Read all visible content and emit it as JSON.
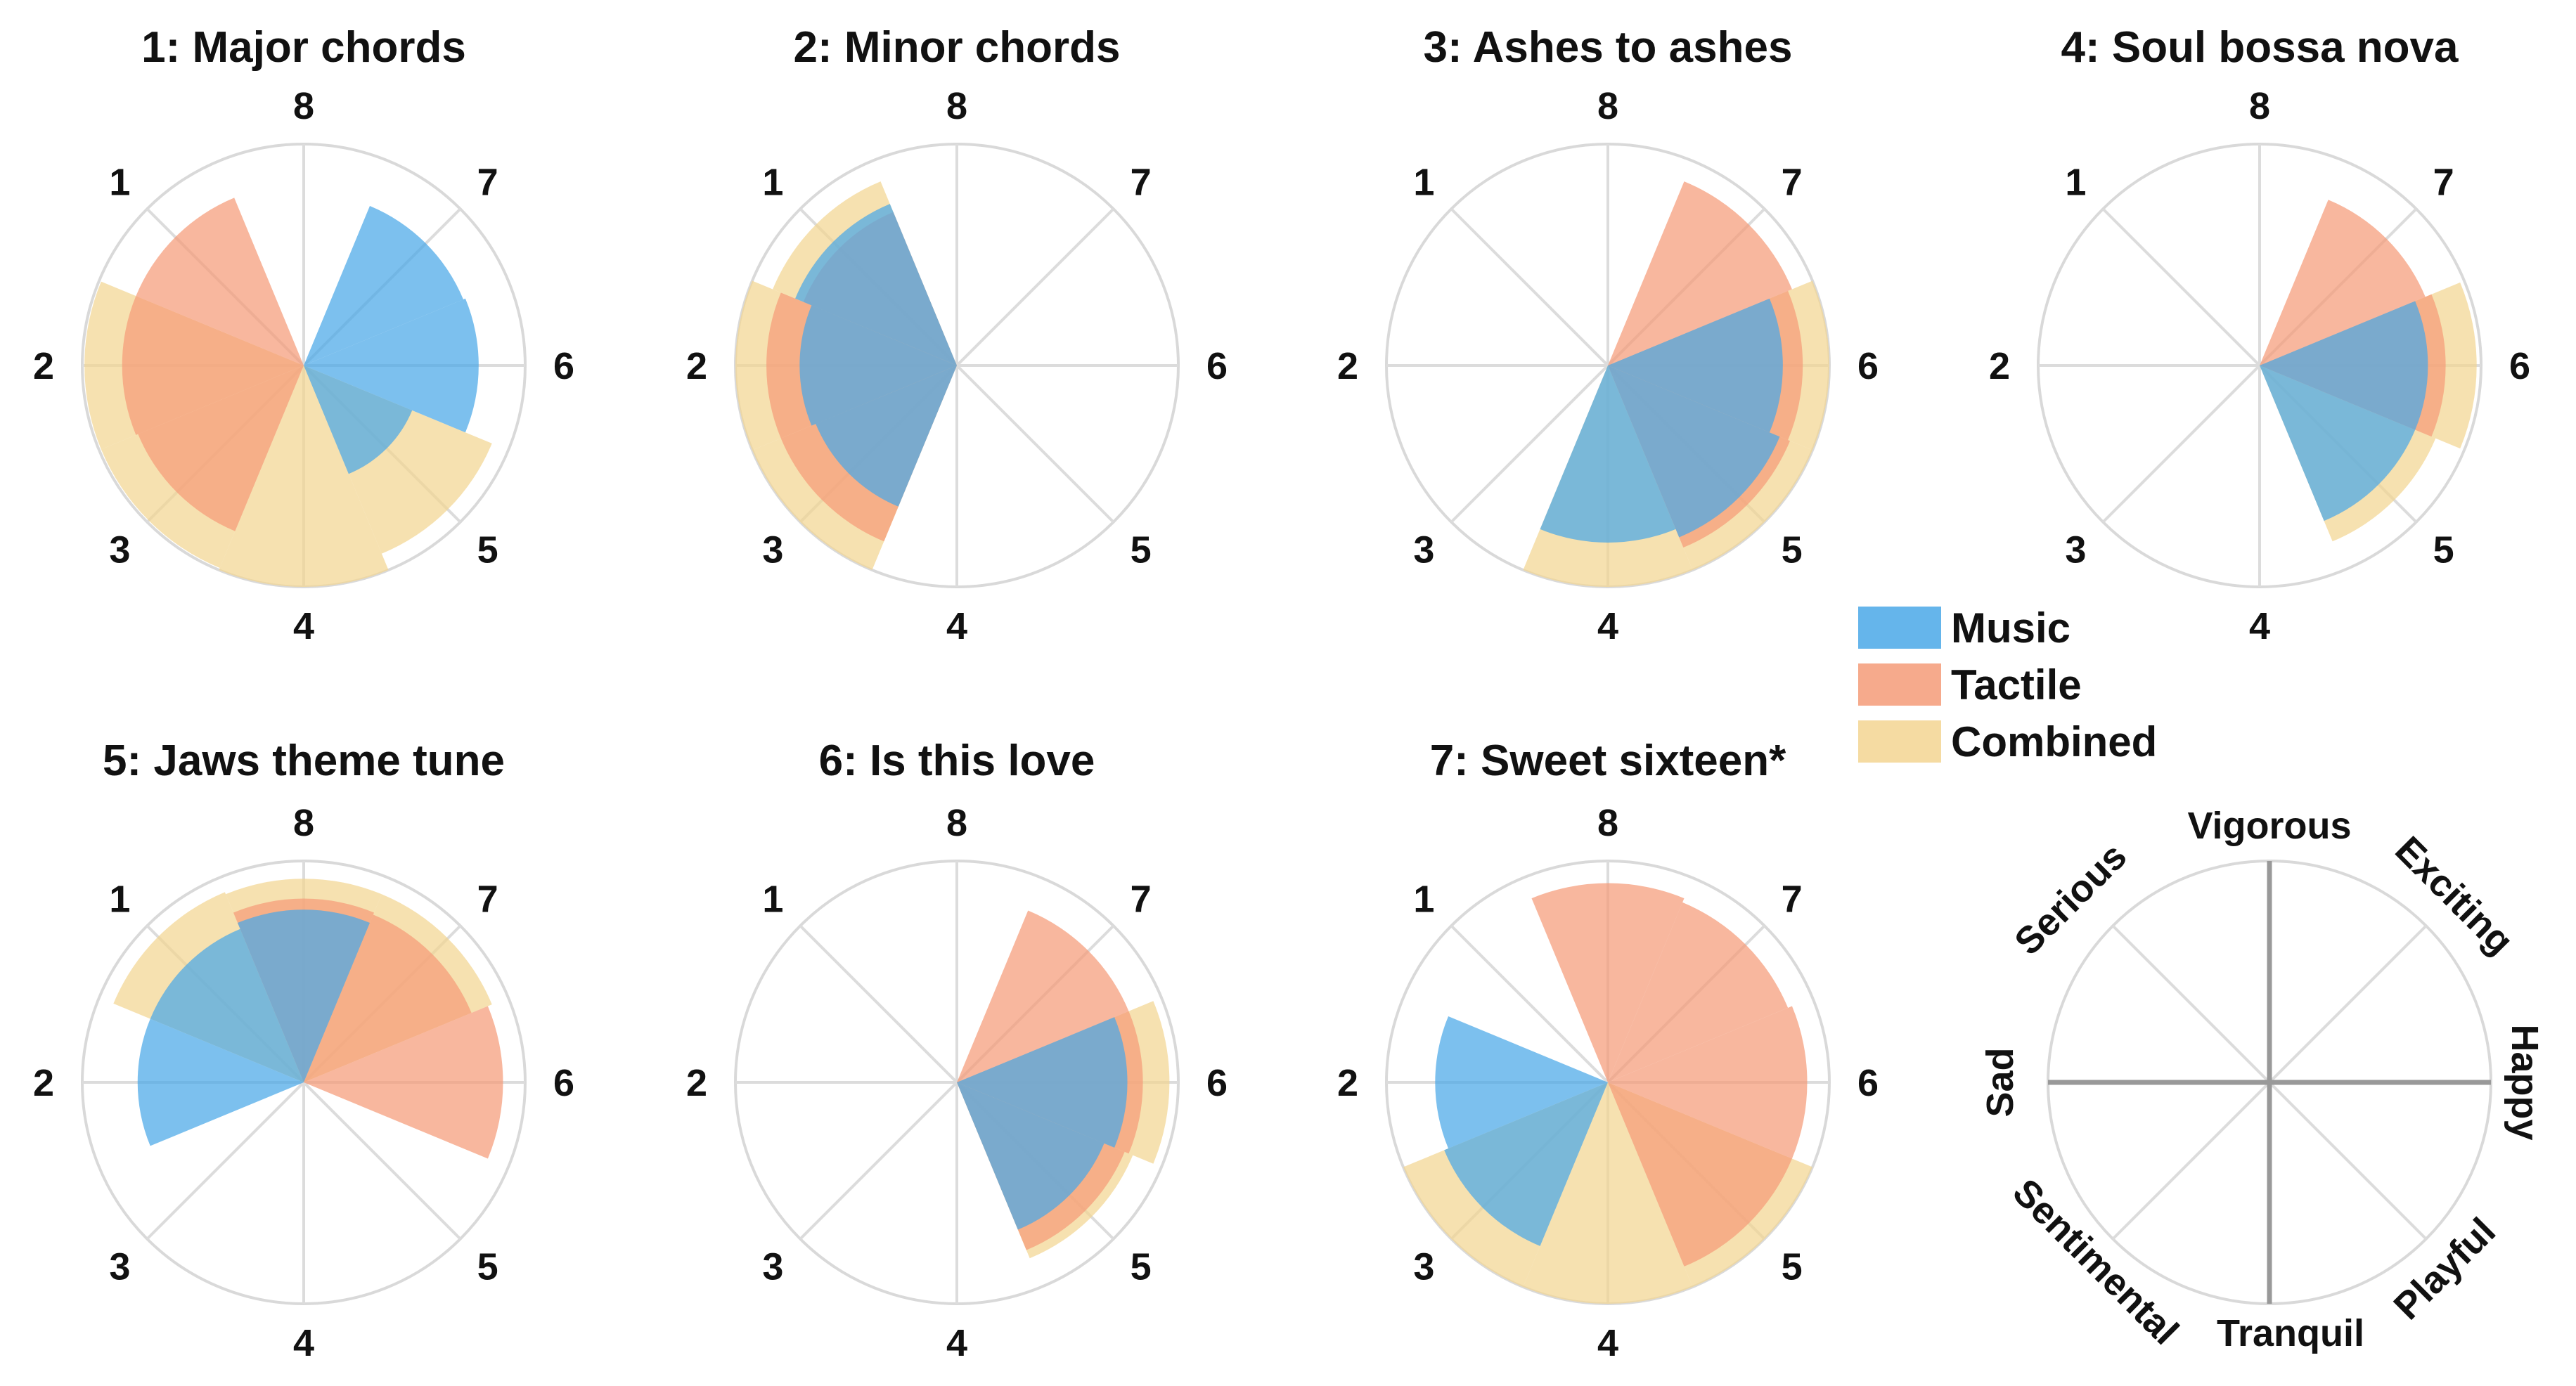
{
  "chart_data": {
    "type": "polar-rose",
    "direction_labels": [
      "1",
      "2",
      "3",
      "4",
      "5",
      "6",
      "7",
      "8"
    ],
    "radial_range": [
      0,
      1
    ],
    "grid": true,
    "legend": {
      "placement": "center-right",
      "entries": [
        {
          "key": "music",
          "name": "Music",
          "color": "#4aa8e8"
        },
        {
          "key": "tactile",
          "name": "Tactile",
          "color": "#f59b78"
        },
        {
          "key": "combined",
          "name": "Combined",
          "color": "#f3d592"
        }
      ]
    },
    "panels": [
      {
        "title": "1: Major chords",
        "series": {
          "music": [
            0,
            0,
            0,
            0,
            0.53,
            0.79,
            0.78,
            0
          ],
          "tactile": [
            0.82,
            0.82,
            0.81,
            0,
            0,
            0,
            0,
            0
          ],
          "combined": [
            0,
            0.99,
            0.99,
            1.0,
            0.92,
            0,
            0,
            0
          ]
        },
        "draw_order": [
          "combined",
          "tactile",
          "music"
        ]
      },
      {
        "title": "2: Minor chords",
        "series": {
          "music": [
            0.79,
            0.71,
            0.69,
            0,
            0,
            0,
            0,
            0
          ],
          "tactile": [
            0.75,
            0.86,
            0.86,
            0,
            0,
            0,
            0,
            0
          ],
          "combined": [
            0.9,
            1.0,
            1.0,
            0,
            0,
            0,
            0,
            0
          ]
        },
        "draw_order": [
          "combined",
          "tactile",
          "music"
        ]
      },
      {
        "title": "3: Ashes to ashes",
        "series": {
          "music": [
            0,
            0,
            0,
            0.8,
            0.84,
            0.79,
            0,
            0
          ],
          "tactile": [
            0,
            0,
            0,
            0,
            0.89,
            0.88,
            0.9,
            0
          ],
          "combined": [
            0,
            0,
            0,
            1.0,
            1.0,
            1.0,
            0,
            0
          ]
        },
        "draw_order": [
          "combined",
          "tactile",
          "music"
        ]
      },
      {
        "title": "4: Soul bossa nova",
        "series": {
          "music": [
            0,
            0,
            0,
            0,
            0.76,
            0.76,
            0,
            0
          ],
          "tactile": [
            0,
            0,
            0,
            0,
            0,
            0.84,
            0.81,
            0
          ],
          "combined": [
            0,
            0,
            0,
            0,
            0.86,
            0.98,
            0,
            0
          ]
        },
        "draw_order": [
          "combined",
          "tactile",
          "music"
        ]
      },
      {
        "title": "5: Jaws theme tune",
        "series": {
          "music": [
            0.75,
            0.75,
            0,
            0,
            0,
            0,
            0,
            0.78
          ],
          "tactile": [
            0,
            0,
            0,
            0,
            0,
            0.9,
            0.82,
            0.83
          ],
          "combined": [
            0.93,
            0,
            0,
            0,
            0,
            0,
            0.92,
            0.92
          ]
        },
        "draw_order": [
          "combined",
          "tactile",
          "music"
        ]
      },
      {
        "title": "6: Is this love",
        "series": {
          "music": [
            0,
            0,
            0,
            0,
            0.72,
            0.77,
            0,
            0
          ],
          "tactile": [
            0,
            0,
            0,
            0,
            0.82,
            0.84,
            0.84,
            0
          ],
          "combined": [
            0,
            0,
            0,
            0,
            0.86,
            0.96,
            0,
            0
          ]
        },
        "draw_order": [
          "combined",
          "tactile",
          "music"
        ]
      },
      {
        "title": "7: Sweet sixteen*",
        "series": {
          "music": [
            0,
            0.78,
            0.8,
            0,
            0,
            0,
            0,
            0
          ],
          "tactile": [
            0,
            0,
            0,
            0,
            0.9,
            0.9,
            0.88,
            0.9
          ],
          "combined": [
            0,
            0,
            1.0,
            1.0,
            1.0,
            0,
            0,
            0
          ]
        },
        "draw_order": [
          "combined",
          "tactile",
          "music"
        ]
      }
    ],
    "key_panel": {
      "labels": [
        "Vigorous",
        "Exciting",
        "Happy",
        "Playful",
        "Tranquil",
        "Sentimental",
        "Sad",
        "Serious"
      ]
    }
  }
}
